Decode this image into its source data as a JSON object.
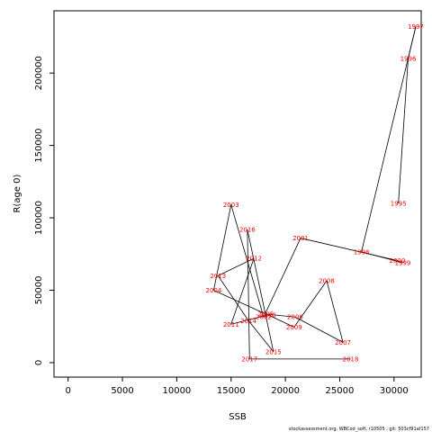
{
  "chart_data": {
    "type": "line",
    "xlabel": "SSB",
    "ylabel": "R(age 0)",
    "xlim": [
      -1300,
      32500
    ],
    "ylim": [
      -10000,
      243000
    ],
    "x_ticks": [
      0,
      5000,
      10000,
      15000,
      20000,
      25000,
      30000
    ],
    "y_ticks": [
      0,
      50000,
      100000,
      150000,
      200000
    ],
    "grid": false,
    "line_color": "#000000",
    "label_color": "#ff0000",
    "points": [
      {
        "year": "1995",
        "x": 30400,
        "y": 110000
      },
      {
        "year": "1996",
        "x": 31300,
        "y": 210000
      },
      {
        "year": "1997",
        "x": 32000,
        "y": 232000
      },
      {
        "year": "1998",
        "x": 27000,
        "y": 76500
      },
      {
        "year": "1999",
        "x": 30800,
        "y": 69000
      },
      {
        "year": "2000",
        "x": 30300,
        "y": 70500
      },
      {
        "year": "2001",
        "x": 21400,
        "y": 86000
      },
      {
        "year": "2002",
        "x": 18000,
        "y": 31500
      },
      {
        "year": "2003",
        "x": 15000,
        "y": 109000
      },
      {
        "year": "2004",
        "x": 13400,
        "y": 50000
      },
      {
        "year": "2005",
        "x": 18200,
        "y": 33500
      },
      {
        "year": "2006",
        "x": 20900,
        "y": 31500
      },
      {
        "year": "2007",
        "x": 25300,
        "y": 14000
      },
      {
        "year": "2008",
        "x": 23800,
        "y": 56500
      },
      {
        "year": "2009",
        "x": 20800,
        "y": 24500
      },
      {
        "year": "2010",
        "x": 18400,
        "y": 33000
      },
      {
        "year": "2011",
        "x": 15000,
        "y": 26500
      },
      {
        "year": "2012",
        "x": 17100,
        "y": 72000
      },
      {
        "year": "2013",
        "x": 13800,
        "y": 60000
      },
      {
        "year": "2014",
        "x": 16600,
        "y": 29000
      },
      {
        "year": "2015",
        "x": 18900,
        "y": 7500
      },
      {
        "year": "2016",
        "x": 16500,
        "y": 92000
      },
      {
        "year": "2017",
        "x": 16700,
        "y": 2500
      },
      {
        "year": "2018",
        "x": 26000,
        "y": 2500
      }
    ]
  },
  "footer": "stockassessment.org, WBCod_soft, r10505 , git: 503cf91af157"
}
